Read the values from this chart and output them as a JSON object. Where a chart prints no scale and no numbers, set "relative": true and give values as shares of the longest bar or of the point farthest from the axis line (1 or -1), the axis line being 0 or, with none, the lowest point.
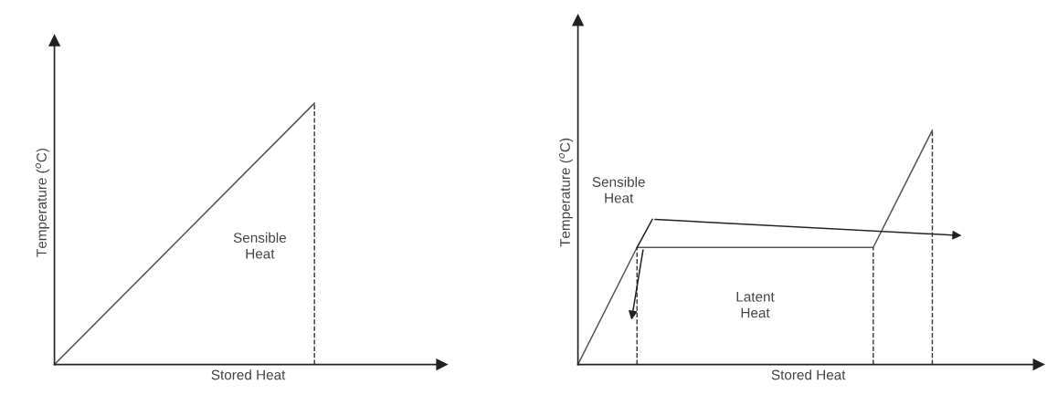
{
  "chart_data": [
    {
      "type": "line",
      "relative": true,
      "xlabel": "Stored Heat",
      "ylabel": "Temperature ($^{o}$C)",
      "categories": [
        null,
        null
      ],
      "tick_labels": false,
      "grid": false,
      "marker": "none",
      "line_style": "solid",
      "series": [
        {
          "color": "#555555",
          "values": [
            0,
            1
          ]
        }
      ],
      "annotations": [
        "Sensible\nHeat"
      ]
    },
    {
      "type": "line",
      "relative": true,
      "xlabel": "Stored Heat",
      "ylabel": "Temperature ($^{o}$C)",
      "categories": [
        null,
        null,
        null,
        null,
        null,
        null,
        null
      ],
      "tick_labels": false,
      "grid": false,
      "marker": "none",
      "line_style": "solid",
      "series": [
        {
          "color": "#555555",
          "values": [
            0,
            0.5,
            0.5,
            0.5,
            0.5,
            0.5,
            1
          ]
        }
      ],
      "annotations": [
        "Sensible\nHeat",
        "Latent\nHeat"
      ]
    }
  ]
}
